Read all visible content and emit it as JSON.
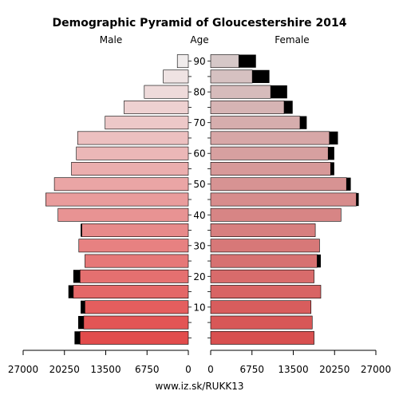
{
  "chart_data": {
    "type": "bar",
    "title": "Demographic Pyramid of Gloucestershire 2014",
    "left_label": "Male",
    "center_label": "Age",
    "right_label": "Female",
    "footer": "www.iz.sk/RUKK13",
    "xlim": [
      0,
      27000
    ],
    "x_ticks_left": [
      "27000",
      "20250",
      "13500",
      "6750",
      "0"
    ],
    "x_ticks_right": [
      "0",
      "6750",
      "13500",
      "20250",
      "27000"
    ],
    "x_tick_values": [
      0,
      6750,
      13500,
      20250,
      27000
    ],
    "age_tick_labels": [
      "10",
      "20",
      "30",
      "40",
      "50",
      "60",
      "70",
      "80",
      "90"
    ],
    "age_groups": [
      "0-4",
      "5-9",
      "10-14",
      "15-19",
      "20-24",
      "25-29",
      "30-34",
      "35-39",
      "40-44",
      "45-49",
      "50-54",
      "55-59",
      "60-64",
      "65-69",
      "70-74",
      "75-79",
      "80-84",
      "85-89",
      "90+"
    ],
    "series": [
      {
        "name": "Male",
        "values": [
          17700,
          17100,
          16900,
          18800,
          17700,
          16900,
          17900,
          17400,
          21300,
          23300,
          21900,
          19100,
          18300,
          18100,
          13600,
          10500,
          7200,
          4100,
          1800
        ],
        "black_values": [
          900,
          900,
          700,
          800,
          1100,
          0,
          0,
          200,
          0,
          0,
          0,
          0,
          0,
          0,
          0,
          0,
          0,
          0,
          0
        ]
      },
      {
        "name": "Female",
        "values": [
          16900,
          16600,
          16400,
          18000,
          16900,
          17400,
          17800,
          17100,
          21300,
          23800,
          22200,
          19600,
          19200,
          19400,
          14600,
          12000,
          9800,
          6800,
          4600
        ],
        "black_values": [
          0,
          0,
          0,
          0,
          0,
          600,
          0,
          0,
          0,
          400,
          700,
          600,
          1000,
          1400,
          1100,
          1400,
          2700,
          2800,
          2800
        ]
      }
    ]
  }
}
